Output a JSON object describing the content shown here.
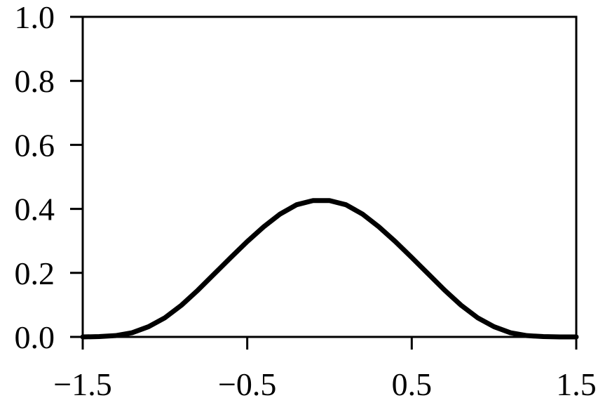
{
  "chart_data": {
    "type": "line",
    "title": "",
    "xlabel": "",
    "ylabel": "",
    "xlim": [
      -1.5,
      1.5
    ],
    "ylim": [
      0.0,
      1.0
    ],
    "grid": false,
    "x_ticks": [
      -1.5,
      -0.5,
      0.5,
      1.5
    ],
    "x_tick_labels": [
      "−1.5",
      "−0.5",
      "0.5",
      "1.5"
    ],
    "y_ticks": [
      0.0,
      0.2,
      0.4,
      0.6,
      0.8,
      1.0
    ],
    "y_tick_labels": [
      "0.0",
      "0.2",
      "0.4",
      "0.6",
      "0.8",
      "1.0"
    ],
    "series": [
      {
        "color": "#000000",
        "x": [
          -1.5,
          -1.4,
          -1.3,
          -1.2,
          -1.1,
          -1.0,
          -0.9,
          -0.8,
          -0.7,
          -0.6,
          -0.5,
          -0.4,
          -0.3,
          -0.2,
          -0.1,
          0.0,
          0.1,
          0.2,
          0.3,
          0.4,
          0.5,
          0.6,
          0.7,
          0.8,
          0.9,
          1.0,
          1.1,
          1.2,
          1.3,
          1.4,
          1.5
        ],
        "y": [
          0.0,
          0.001,
          0.004,
          0.013,
          0.032,
          0.06,
          0.099,
          0.146,
          0.197,
          0.248,
          0.298,
          0.344,
          0.384,
          0.413,
          0.426,
          0.426,
          0.413,
          0.384,
          0.344,
          0.298,
          0.248,
          0.197,
          0.146,
          0.099,
          0.06,
          0.032,
          0.013,
          0.004,
          0.001,
          0.0,
          0.0
        ]
      }
    ]
  }
}
